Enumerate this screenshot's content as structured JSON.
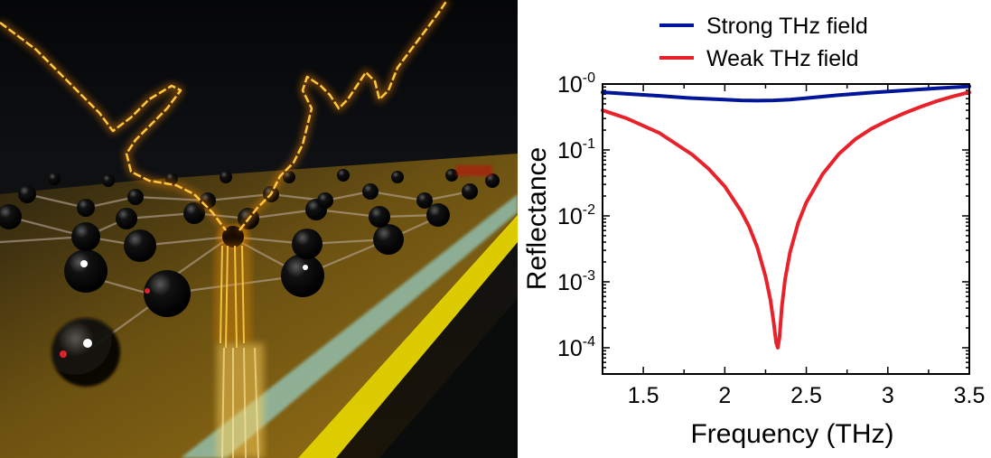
{
  "illustration": {
    "description_icon": "graphene-lattice-thz-pulse-illustration",
    "colors": {
      "background": "#0b0d10",
      "substrate": "#8a6a14",
      "glow": "#ffb000",
      "edge_cyan": "#9ff3ff",
      "edge_yellow": "#f3e000"
    }
  },
  "chart_data": {
    "type": "line",
    "xlabel": "Frequency (THz)",
    "ylabel": "Reflectance",
    "xlim": [
      1.25,
      3.5
    ],
    "ylim": [
      4e-05,
      1.0
    ],
    "y_scale": "log",
    "x_ticks": [
      1.5,
      2,
      2.5,
      3,
      3.5
    ],
    "x_tick_labels": [
      "1.5",
      "2",
      "2.5",
      "3",
      "3.5"
    ],
    "y_ticks": [
      0.0001,
      0.001,
      0.01,
      0.1,
      1
    ],
    "y_tick_labels": [
      {
        "base": "10",
        "exp": "-4"
      },
      {
        "base": "10",
        "exp": "-3"
      },
      {
        "base": "10",
        "exp": "-2"
      },
      {
        "base": "10",
        "exp": "-1"
      },
      {
        "base": "10",
        "exp": "-0"
      }
    ],
    "legend_position": "top-center",
    "grid": false,
    "series": [
      {
        "name": "Strong THz field",
        "color": "#00159a",
        "x": [
          1.25,
          1.4,
          1.6,
          1.8,
          2.0,
          2.1,
          2.2,
          2.3,
          2.4,
          2.5,
          2.7,
          2.9,
          3.1,
          3.3,
          3.5
        ],
        "y": [
          0.75,
          0.71,
          0.66,
          0.61,
          0.58,
          0.565,
          0.56,
          0.565,
          0.58,
          0.61,
          0.68,
          0.74,
          0.8,
          0.86,
          0.92
        ]
      },
      {
        "name": "Weak THz field",
        "color": "#e8222b",
        "x": [
          1.25,
          1.4,
          1.6,
          1.8,
          1.9,
          2.0,
          2.1,
          2.15,
          2.2,
          2.25,
          2.28,
          2.3,
          2.315,
          2.325,
          2.335,
          2.35,
          2.37,
          2.4,
          2.45,
          2.5,
          2.6,
          2.7,
          2.8,
          2.9,
          3.0,
          3.1,
          3.2,
          3.3,
          3.4,
          3.5
        ],
        "y": [
          0.4,
          0.3,
          0.18,
          0.085,
          0.052,
          0.028,
          0.0118,
          0.0068,
          0.0033,
          0.0012,
          0.00053,
          0.00024,
          0.00012,
          0.0001,
          0.00014,
          0.00042,
          0.0011,
          0.0028,
          0.0078,
          0.016,
          0.043,
          0.087,
          0.145,
          0.21,
          0.28,
          0.36,
          0.45,
          0.55,
          0.65,
          0.75
        ]
      }
    ]
  }
}
